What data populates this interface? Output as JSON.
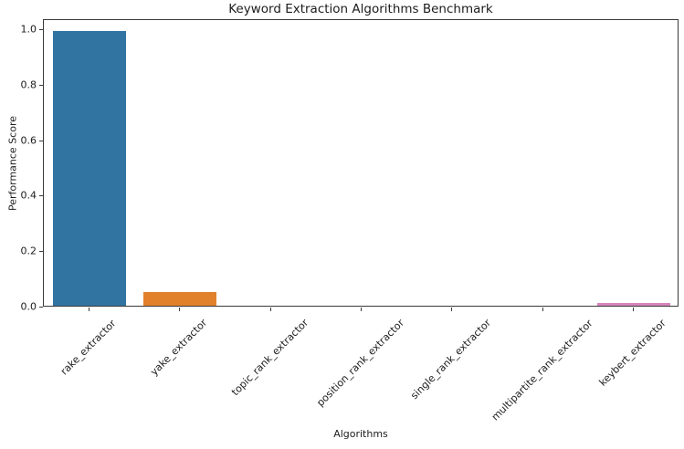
{
  "chart_data": {
    "type": "bar",
    "title": "Keyword Extraction Algorithms Benchmark",
    "xlabel": "Algorithms",
    "ylabel": "Performance Score",
    "categories": [
      "rake_extractor",
      "yake_extractor",
      "topic_rank_extractor",
      "position_rank_extractor",
      "single_rank_extractor",
      "multipartite_rank_extractor",
      "keybert_extractor"
    ],
    "values": [
      0.99,
      0.05,
      0.0,
      0.0,
      0.0,
      0.0,
      0.01
    ],
    "bar_colors": [
      "#3274a1",
      "#e1812c",
      "#3a923a",
      "#c03d3e",
      "#9372b2",
      "#845b53",
      "#d684bd"
    ],
    "yticks": [
      "0.0",
      "0.2",
      "0.4",
      "0.6",
      "0.8",
      "1.0"
    ],
    "ytick_values": [
      0.0,
      0.2,
      0.4,
      0.6,
      0.8,
      1.0
    ],
    "ylim": [
      0.0,
      1.036
    ],
    "bar_width_fraction": 0.8,
    "x_tick_rotation": 45,
    "grid": false,
    "legend": "none",
    "background_color": "#ffffff",
    "spine_color": "#3a3a3a",
    "text_color": "#1c1c1c"
  }
}
